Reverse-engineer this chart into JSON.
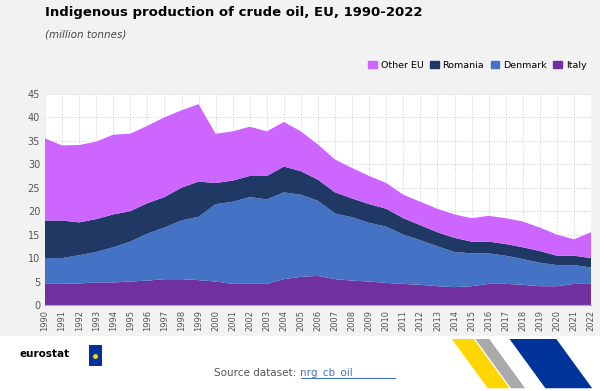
{
  "title": "Indigenous production of crude oil, EU, 1990-2022",
  "subtitle": "(million tonnes)",
  "years": [
    1990,
    1991,
    1992,
    1993,
    1994,
    1995,
    1996,
    1997,
    1998,
    1999,
    2000,
    2001,
    2002,
    2003,
    2004,
    2005,
    2006,
    2007,
    2008,
    2009,
    2010,
    2011,
    2012,
    2013,
    2014,
    2015,
    2016,
    2017,
    2018,
    2019,
    2020,
    2021,
    2022
  ],
  "italy": [
    4.5,
    4.5,
    4.6,
    4.8,
    4.8,
    5.0,
    5.2,
    5.5,
    5.5,
    5.3,
    5.0,
    4.5,
    4.5,
    4.5,
    5.5,
    6.0,
    6.2,
    5.5,
    5.2,
    5.0,
    4.7,
    4.5,
    4.3,
    4.0,
    3.8,
    4.0,
    4.5,
    4.5,
    4.3,
    4.0,
    4.0,
    4.5,
    4.5
  ],
  "denmark": [
    5.5,
    5.5,
    6.0,
    6.5,
    7.5,
    8.5,
    10.0,
    11.0,
    12.5,
    13.5,
    16.5,
    17.5,
    18.5,
    18.0,
    18.5,
    17.5,
    16.0,
    14.0,
    13.5,
    12.5,
    12.0,
    10.5,
    9.5,
    8.5,
    7.5,
    7.0,
    6.5,
    6.0,
    5.5,
    5.0,
    4.5,
    4.0,
    3.5
  ],
  "romania": [
    8.0,
    8.0,
    7.0,
    7.0,
    7.0,
    6.5,
    6.5,
    6.5,
    7.0,
    7.5,
    4.5,
    4.5,
    4.5,
    5.0,
    5.5,
    5.0,
    4.5,
    4.5,
    4.0,
    4.0,
    3.8,
    3.5,
    3.2,
    3.0,
    3.0,
    2.5,
    2.5,
    2.5,
    2.5,
    2.5,
    2.0,
    2.0,
    2.0
  ],
  "other_eu": [
    17.5,
    16.0,
    16.5,
    16.5,
    17.0,
    16.5,
    16.5,
    17.0,
    16.5,
    16.5,
    10.5,
    10.5,
    10.5,
    9.5,
    9.5,
    8.5,
    7.5,
    7.0,
    6.5,
    6.0,
    5.5,
    5.0,
    5.0,
    5.0,
    5.0,
    5.0,
    5.5,
    5.5,
    5.5,
    5.0,
    4.5,
    3.5,
    5.5
  ],
  "italy_color": "#7030a0",
  "denmark_color": "#4472c4",
  "romania_color": "#1f3864",
  "other_eu_color": "#cc66ff",
  "bg_color": "#f2f2f2",
  "plot_bg_color": "#ffffff",
  "ylim": [
    0,
    45
  ],
  "yticks": [
    0,
    5,
    10,
    15,
    20,
    25,
    30,
    35,
    40,
    45
  ],
  "legend_labels": [
    "Other EU",
    "Romania",
    "Denmark",
    "Italy"
  ],
  "eurostat_blue": "#003399",
  "source_color": "#4472c4"
}
